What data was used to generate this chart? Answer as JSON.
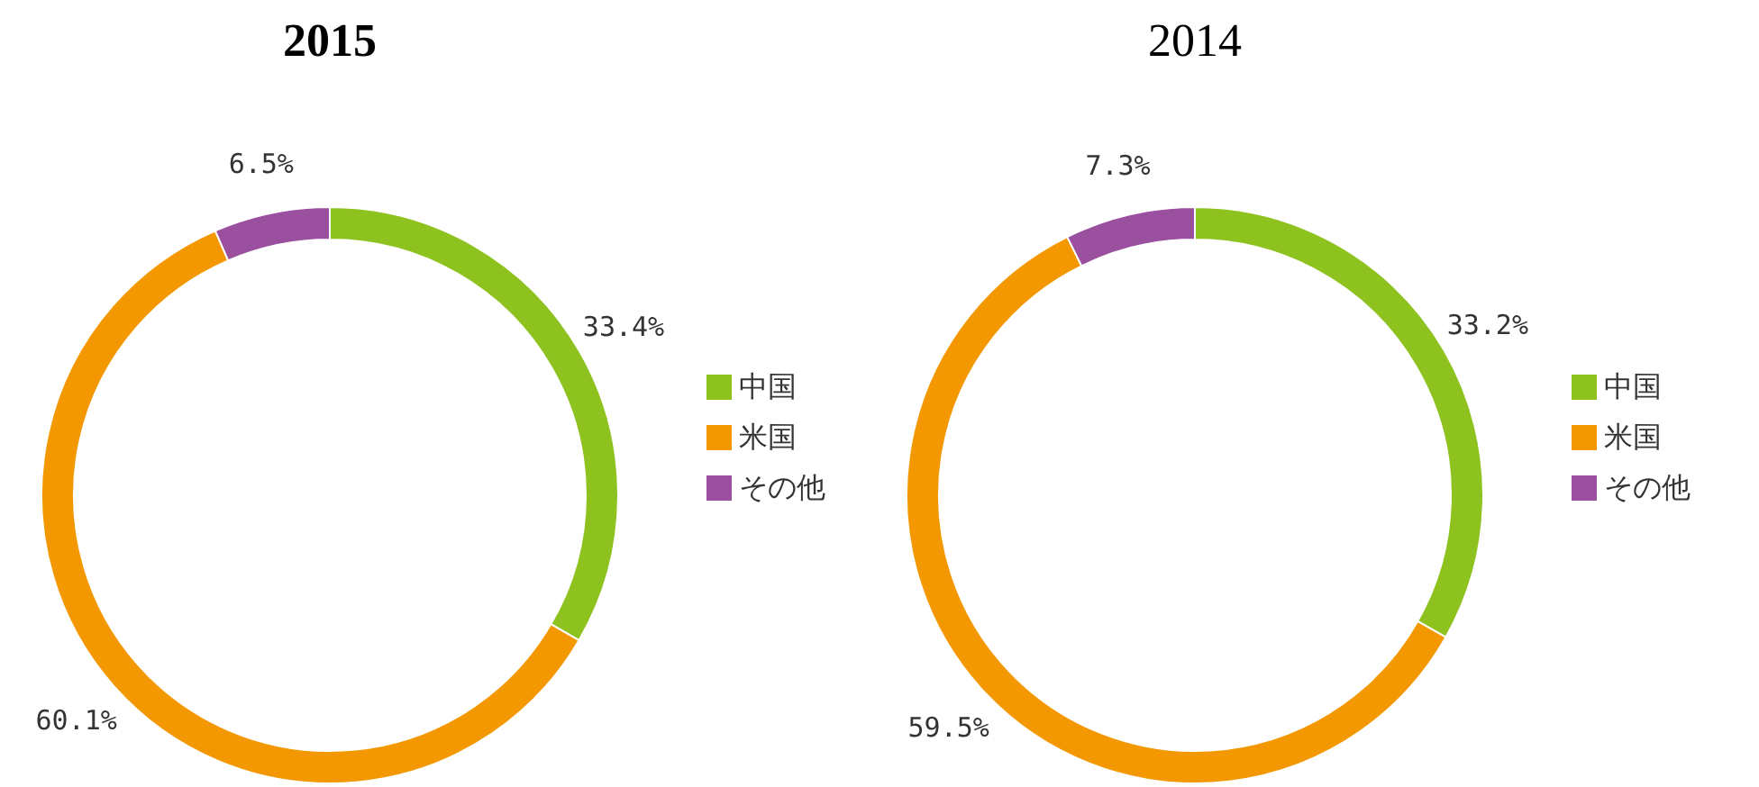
{
  "chart_data": [
    {
      "type": "donut",
      "title": "2015",
      "categories": [
        "中国",
        "米国",
        "その他"
      ],
      "values": [
        33.4,
        60.1,
        6.5
      ],
      "colors": [
        "#8dc21f",
        "#f39800",
        "#9b4f9f"
      ],
      "value_labels": [
        "33.4%",
        "60.1%",
        "6.5%"
      ],
      "legend": "right"
    },
    {
      "type": "donut",
      "title": "2014",
      "categories": [
        "中国",
        "米国",
        "その他"
      ],
      "values": [
        33.2,
        59.5,
        7.3
      ],
      "colors": [
        "#8dc21f",
        "#f39800",
        "#9b4f9f"
      ],
      "value_labels": [
        "33.2%",
        "59.5%",
        "7.3%"
      ],
      "legend": "right"
    }
  ]
}
